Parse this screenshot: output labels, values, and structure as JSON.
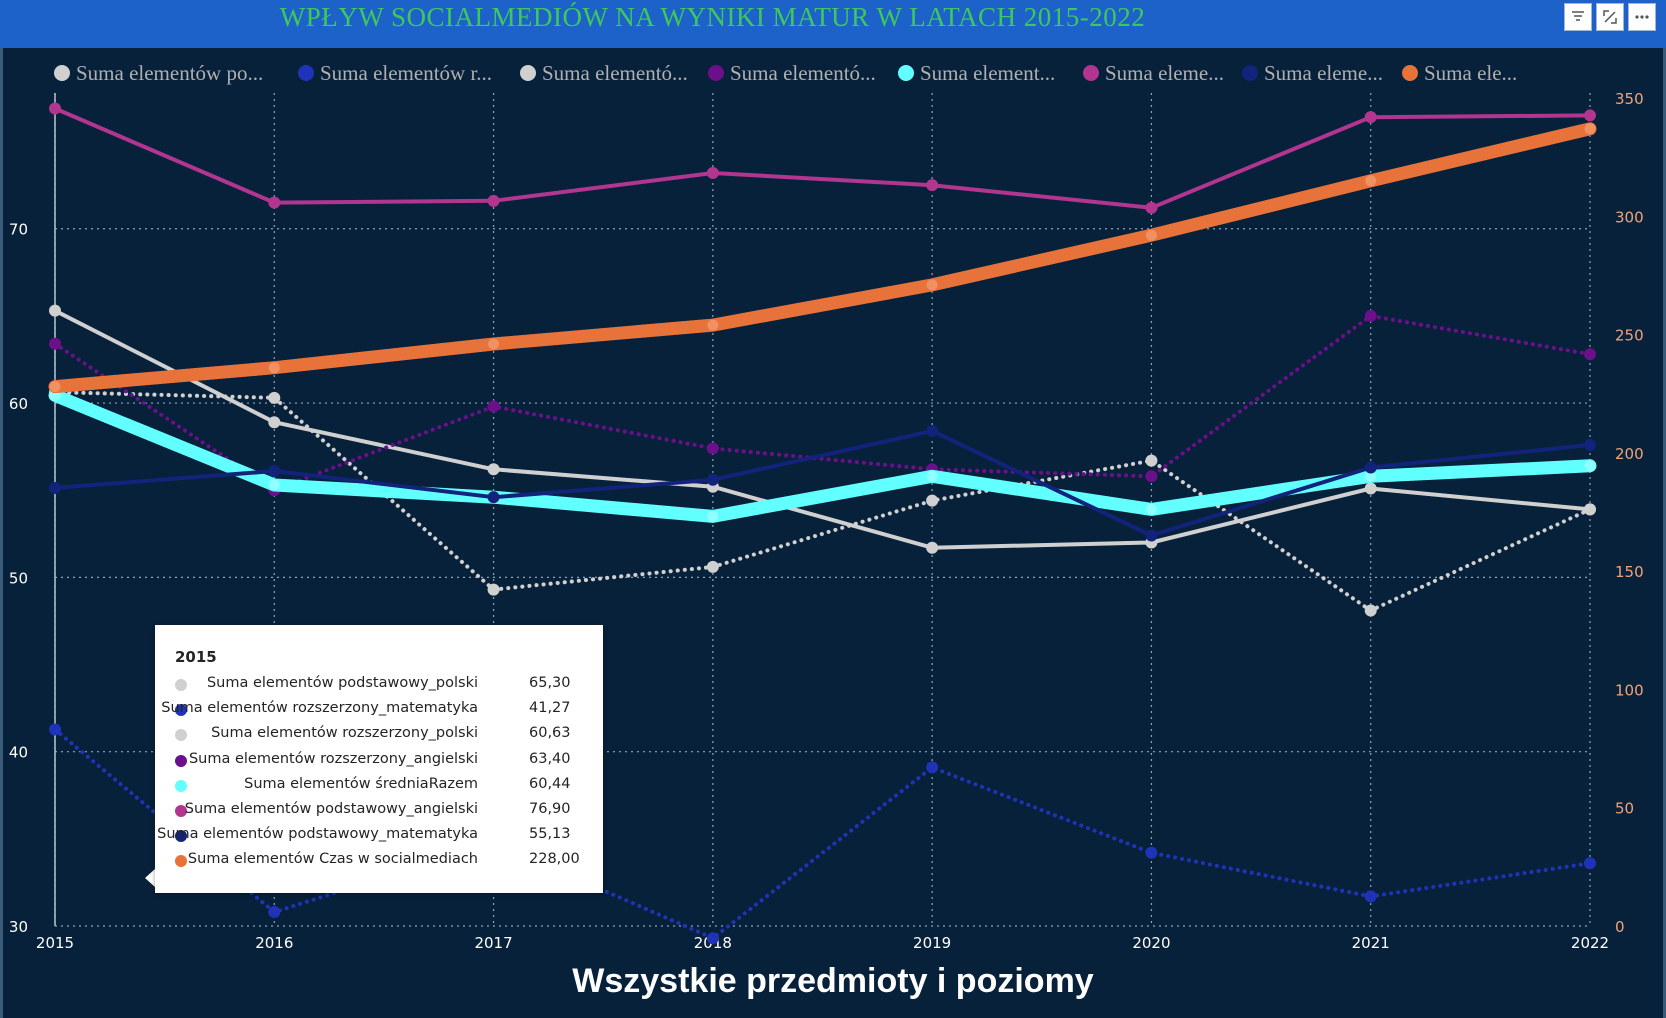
{
  "page": {
    "title": "WPŁYW SOCIALMEDIÓW NA WYNIKI MATUR W LATACH 2015-2022",
    "subtitle": "Wszystkie przedmioty i poziomy"
  },
  "header_icons": [
    "filter-icon",
    "focus-mode-icon",
    "more-options-icon"
  ],
  "legend": [
    "Suma elementów po...",
    "Suma elementów r...",
    "Suma elementó...",
    "Suma elementó...",
    "Suma element...",
    "Suma eleme...",
    "Suma eleme...",
    "Suma ele..."
  ],
  "tooltip": {
    "year": "2015",
    "rows": [
      {
        "name": "Suma elementów podstawowy_polski",
        "value": "65,30",
        "color": "#d0d0d0"
      },
      {
        "name": "Suma elementów rozszerzony_matematyka",
        "value": "41,27",
        "color": "#1f33b8"
      },
      {
        "name": "Suma elementów rozszerzony_polski",
        "value": "60,63",
        "color": "#d0d0d0"
      },
      {
        "name": "Suma elementów rozszerzony_angielski",
        "value": "63,40",
        "color": "#6b0f8a"
      },
      {
        "name": "Suma elementów średniaRazem",
        "value": "60,44",
        "color": "#62ffff"
      },
      {
        "name": "Suma elementów podstawowy_angielski",
        "value": "76,90",
        "color": "#b2358f"
      },
      {
        "name": "Suma elementów podstawowy_matematyka",
        "value": "55,13",
        "color": "#11237a"
      },
      {
        "name": "Suma elementów Czas w socialmediach",
        "value": "228,00",
        "color": "#e8733a"
      }
    ]
  },
  "chart_data": {
    "type": "line",
    "x": [
      2015,
      2016,
      2017,
      2018,
      2019,
      2020,
      2021,
      2022
    ],
    "xticks": [
      "2015",
      "2016",
      "2017",
      "2018",
      "2019",
      "2020",
      "2021",
      "2022"
    ],
    "ylim_left": [
      30,
      77.5
    ],
    "yticks_left": [
      "30",
      "40",
      "50",
      "60",
      "70"
    ],
    "ylim_right": [
      0,
      350
    ],
    "yticks_right": [
      "0",
      "50",
      "100",
      "150",
      "200",
      "250",
      "300",
      "350"
    ],
    "grid": true,
    "series": [
      {
        "name": "Suma elementów podstawowy_polski",
        "axis": "left",
        "color": "#d0d0d0",
        "style": "solid",
        "width": 4,
        "values": [
          65.3,
          58.9,
          56.2,
          55.2,
          51.7,
          52.0,
          55.1,
          53.9
        ]
      },
      {
        "name": "Suma elementów rozszerzony_matematyka",
        "axis": "left",
        "color": "#1f33b8",
        "style": "dotted",
        "width": 4,
        "values": [
          41.27,
          30.8,
          34.8,
          29.3,
          39.1,
          34.2,
          31.7,
          33.6
        ]
      },
      {
        "name": "Suma elementów rozszerzony_polski",
        "axis": "left",
        "color": "#d0d0d0",
        "style": "dotted",
        "width": 4,
        "values": [
          60.63,
          60.3,
          49.3,
          50.6,
          54.4,
          56.7,
          48.1,
          53.9
        ]
      },
      {
        "name": "Suma elementów rozszerzony_angielski",
        "axis": "left",
        "color": "#6b0f8a",
        "style": "dotted",
        "width": 4,
        "values": [
          63.4,
          55.0,
          59.8,
          57.4,
          56.2,
          55.8,
          65.0,
          62.8
        ]
      },
      {
        "name": "Suma elementów średniaRazem",
        "axis": "left",
        "color": "#62ffff",
        "style": "solid",
        "width": 13,
        "values": [
          60.44,
          55.3,
          54.6,
          53.5,
          55.8,
          53.9,
          55.8,
          56.4
        ]
      },
      {
        "name": "Suma elementów podstawowy_angielski",
        "axis": "left",
        "color": "#b2358f",
        "style": "solid",
        "width": 4,
        "values": [
          76.9,
          71.5,
          71.6,
          73.2,
          72.5,
          71.2,
          76.4,
          76.5
        ]
      },
      {
        "name": "Suma elementów podstawowy_matematyka",
        "axis": "left",
        "color": "#11237a",
        "style": "solid",
        "width": 4,
        "values": [
          55.13,
          56.1,
          54.6,
          55.6,
          58.4,
          52.4,
          56.3,
          57.6
        ]
      },
      {
        "name": "Suma elementów Czas w socialmediach",
        "axis": "right",
        "color": "#e8733a",
        "style": "solid",
        "width": 13,
        "values": [
          228,
          236,
          246,
          254,
          271,
          292,
          315,
          337
        ]
      }
    ]
  }
}
